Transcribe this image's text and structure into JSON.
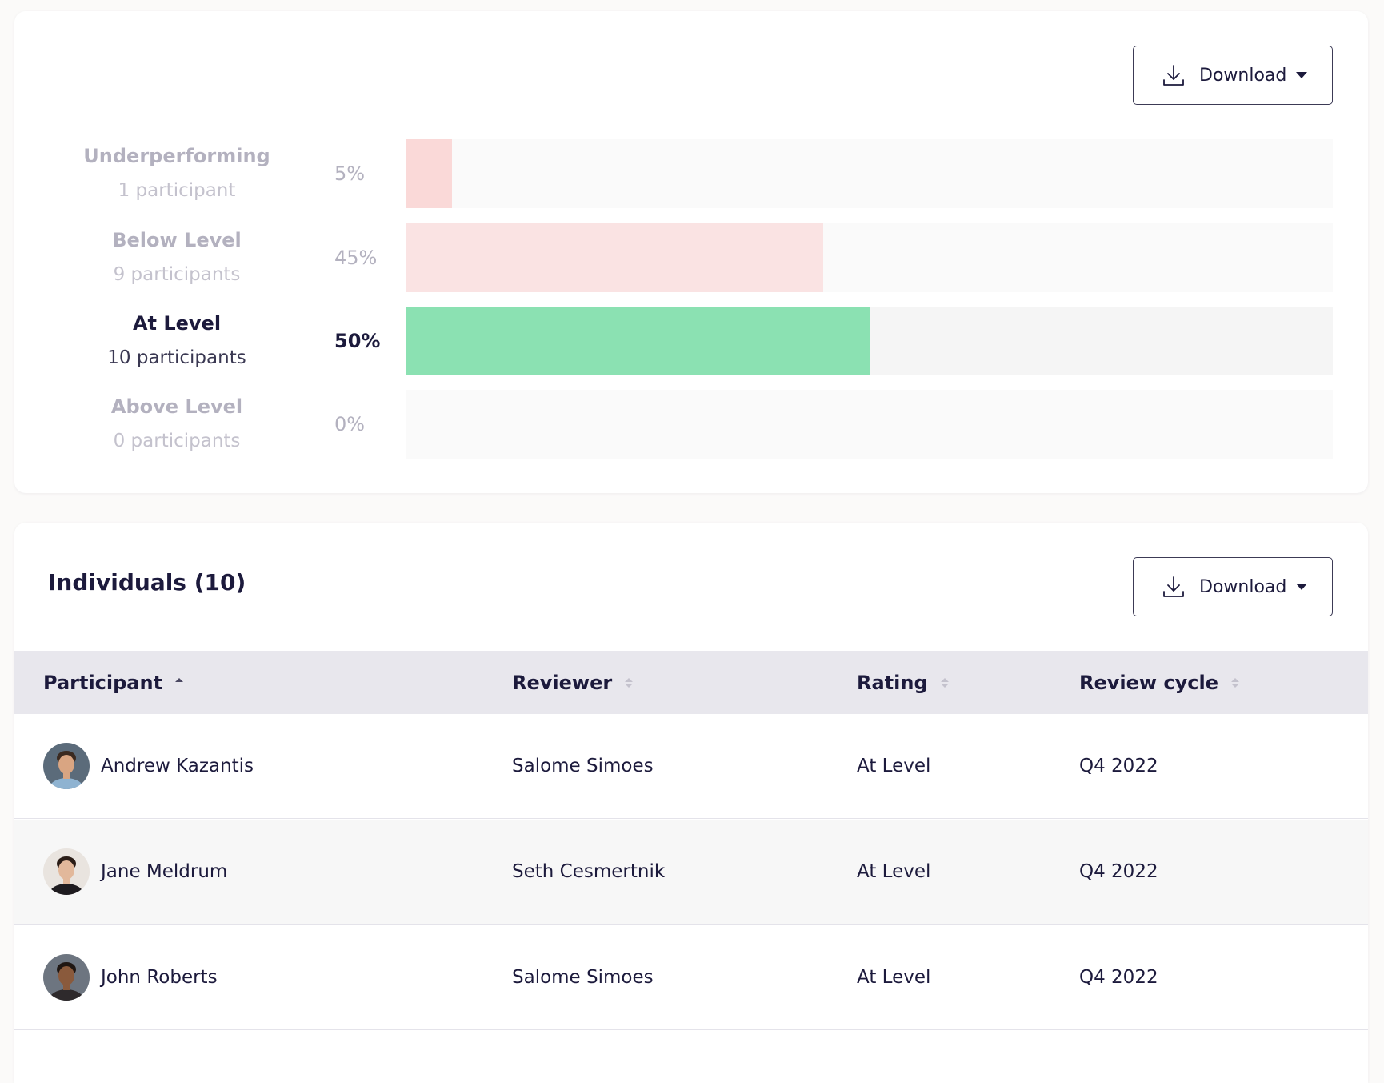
{
  "distribution": {
    "download_label": "Download",
    "rows": [
      {
        "name": "Underperforming",
        "count_label": "1 participant",
        "percent_label": "5%",
        "percent": 5,
        "color": "#fad9d8",
        "active": false
      },
      {
        "name": "Below Level",
        "count_label": "9 participants",
        "percent_label": "45%",
        "percent": 45,
        "color": "#fae3e3",
        "active": false
      },
      {
        "name": "At Level",
        "count_label": "10 participants",
        "percent_label": "50%",
        "percent": 50,
        "color": "#8be1b2",
        "active": true
      },
      {
        "name": "Above Level",
        "count_label": "0 participants",
        "percent_label": "0%",
        "percent": 0,
        "color": "#e6f7ee",
        "active": false
      }
    ]
  },
  "individuals": {
    "title": "Individuals (10)",
    "download_label": "Download",
    "columns": {
      "participant": "Participant",
      "reviewer": "Reviewer",
      "rating": "Rating",
      "cycle": "Review cycle"
    },
    "rows": [
      {
        "participant": "Andrew Kazantis",
        "reviewer": "Salome Simoes",
        "rating": "At Level",
        "cycle": "Q4 2022",
        "avatar_colors": {
          "bg": "#5b6b7a",
          "face": "#d9a582",
          "hair": "#3b2a20",
          "shirt": "#8fb3d1"
        }
      },
      {
        "participant": "Jane Meldrum",
        "reviewer": "Seth Cesmertnik",
        "rating": "At Level",
        "cycle": "Q4 2022",
        "avatar_colors": {
          "bg": "#e9e4df",
          "face": "#e2b89b",
          "hair": "#2a1c16",
          "shirt": "#1e1b1f"
        }
      },
      {
        "participant": "John Roberts",
        "reviewer": "Salome Simoes",
        "rating": "At Level",
        "cycle": "Q4 2022",
        "avatar_colors": {
          "bg": "#6d7580",
          "face": "#8a5a3c",
          "hair": "#1f1612",
          "shirt": "#2e2a2c"
        }
      }
    ]
  },
  "icons": {
    "download": "download-icon",
    "caret": "caret-down-icon",
    "sort": "sort-icon"
  }
}
